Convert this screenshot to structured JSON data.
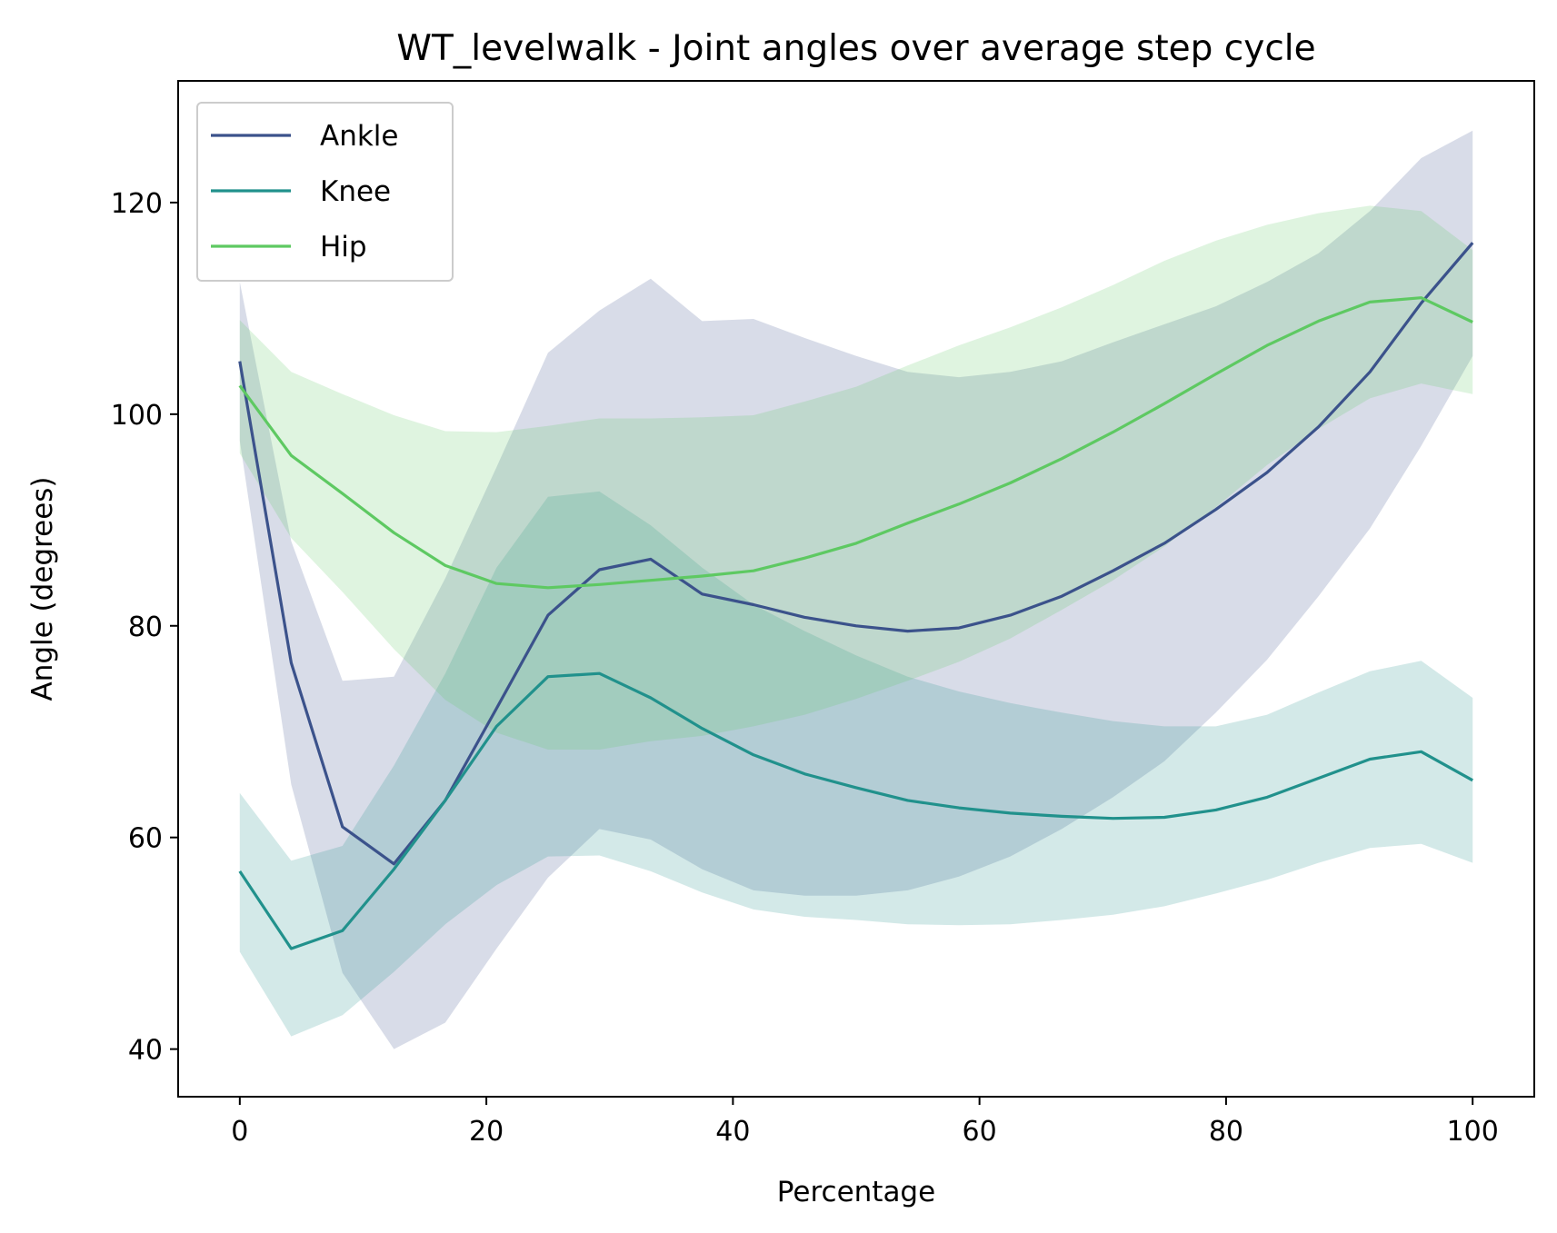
{
  "chart_data": {
    "type": "line",
    "title": "WT_levelwalk - Joint angles over average step cycle",
    "xlabel": "Percentage",
    "ylabel": "Angle (degrees)",
    "xlim": [
      -5,
      105
    ],
    "ylim": [
      35.5,
      131.5
    ],
    "xticks": [
      0,
      20,
      40,
      60,
      80,
      100
    ],
    "yticks": [
      40,
      60,
      80,
      100,
      120
    ],
    "legend_position": "top-left",
    "x": [
      0,
      4.17,
      8.33,
      12.5,
      16.67,
      20.83,
      25,
      29.17,
      33.33,
      37.5,
      41.67,
      45.83,
      50,
      54.17,
      58.33,
      62.5,
      66.67,
      70.83,
      75,
      79.17,
      83.33,
      87.5,
      91.67,
      95.83,
      100
    ],
    "series": [
      {
        "name": "Ankle",
        "color": "#3b528b",
        "values": [
          105,
          76.5,
          61,
          57.5,
          63.5,
          72.2,
          81,
          85.3,
          86.3,
          83,
          82,
          80.8,
          80,
          79.5,
          79.8,
          81,
          82.8,
          85.2,
          87.8,
          91,
          94.5,
          98.8,
          104,
          110.5,
          116.2
        ],
        "upper": [
          112.5,
          88,
          74.8,
          75.2,
          84.5,
          95,
          105.8,
          109.8,
          112.8,
          108.8,
          109,
          107.2,
          105.5,
          104,
          103.5,
          104,
          105,
          106.8,
          108.5,
          110.2,
          112.5,
          115.2,
          119.2,
          124.2,
          126.8
        ],
        "lower": [
          97.5,
          65,
          47.2,
          40,
          42.5,
          49.5,
          56.2,
          60.8,
          59.8,
          57,
          55,
          54.5,
          54.5,
          55,
          56.3,
          58.2,
          60.8,
          63.8,
          67.2,
          71.8,
          76.8,
          82.8,
          89.2,
          97,
          105.5
        ]
      },
      {
        "name": "Knee",
        "color": "#21918c",
        "values": [
          56.8,
          49.5,
          51.2,
          57,
          63.5,
          70.5,
          75.2,
          75.5,
          73.2,
          70.3,
          67.8,
          66,
          64.7,
          63.5,
          62.8,
          62.3,
          62,
          61.8,
          61.9,
          62.6,
          63.8,
          65.6,
          67.4,
          68.1,
          65.4
        ],
        "upper": [
          64.2,
          57.8,
          59.2,
          66.8,
          75.5,
          85.5,
          92.2,
          92.7,
          89.5,
          85.5,
          82,
          79.5,
          77.2,
          75.2,
          73.8,
          72.7,
          71.8,
          71,
          70.5,
          70.5,
          71.6,
          73.7,
          75.7,
          76.7,
          73.2
        ],
        "lower": [
          49.2,
          41.2,
          43.2,
          47.3,
          51.8,
          55.5,
          58.2,
          58.3,
          56.8,
          54.8,
          53.2,
          52.5,
          52.2,
          51.8,
          51.7,
          51.8,
          52.2,
          52.7,
          53.5,
          54.7,
          56,
          57.6,
          59,
          59.4,
          57.6
        ]
      },
      {
        "name": "Hip",
        "color": "#5ec962",
        "values": [
          102.7,
          96.1,
          92.5,
          88.8,
          85.7,
          84,
          83.6,
          83.9,
          84.3,
          84.7,
          85.2,
          86.4,
          87.8,
          89.7,
          91.5,
          93.5,
          95.8,
          98.3,
          101,
          103.8,
          106.5,
          108.8,
          110.6,
          111,
          108.7
        ],
        "upper": [
          108.9,
          104,
          101.9,
          99.9,
          98.4,
          98.3,
          98.9,
          99.6,
          99.6,
          99.7,
          99.9,
          101.2,
          102.6,
          104.6,
          106.5,
          108.2,
          110.1,
          112.2,
          114.5,
          116.4,
          117.9,
          119,
          119.7,
          119.2,
          115.5
        ],
        "lower": [
          96.3,
          88.3,
          83.2,
          77.8,
          73,
          69.9,
          68.3,
          68.3,
          69.1,
          69.6,
          70.5,
          71.6,
          73.1,
          74.8,
          76.6,
          78.8,
          81.5,
          84.3,
          87.5,
          91.2,
          95.2,
          98.6,
          101.5,
          102.9,
          101.9
        ]
      }
    ]
  }
}
